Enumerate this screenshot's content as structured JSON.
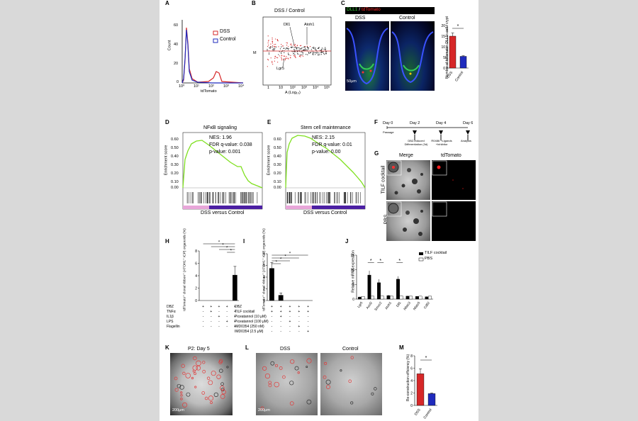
{
  "panel_labels": {
    "A": "A",
    "B": "B",
    "C": "C",
    "D": "D",
    "E": "E",
    "F": "F",
    "G": "G",
    "H": "H",
    "I": "I",
    "J": "J",
    "K": "K",
    "L": "L",
    "M": "M"
  },
  "colors": {
    "dss": "#d62728",
    "control": "#1f2bbd",
    "gsea_line": "#7fe01f",
    "gsea_pink": "#e8a6d9",
    "gsea_purple": "#4b1fa3",
    "background": "#d9d9d9"
  },
  "A": {
    "ylabel": "Count",
    "xlabel": "tdTomato",
    "legend": [
      "DSS",
      "Control"
    ],
    "yticks": [
      "0",
      "20",
      "40",
      "60"
    ],
    "xticks": [
      "10⁰",
      "10¹",
      "10²",
      "10³",
      "10⁴"
    ]
  },
  "B": {
    "title": "DSS / Control",
    "ylabel": "M",
    "xlabel": "A (Log₁₀)",
    "annotations": [
      "Dll1",
      "Atoh1",
      "Lgr5"
    ],
    "yticks": [
      "10",
      "5",
      "0",
      "-5",
      "-10"
    ],
    "xticks": [
      "1",
      "10",
      "10²",
      "10³",
      "10⁴",
      "10⁵"
    ]
  },
  "C": {
    "header_left": "DLL1",
    "header_sep": " / ",
    "header_right": "tdTomato",
    "col_labels": [
      "DSS",
      "Control"
    ],
    "scale_bar": "50μm",
    "ylabel": "Number of tdTomato⁺ DLL1⁺ cell / crypt",
    "yticks": [
      "0",
      "5",
      "10",
      "15",
      "20"
    ],
    "categories": [
      "DSS",
      "Control"
    ],
    "star": "*"
  },
  "D": {
    "title": "NFκB signaling",
    "stats": [
      "NES: 1.96",
      "FDR q-value: 0.038",
      "p-value: 0.001"
    ],
    "ylabel": "Enrichment score",
    "xlabel": "DSS versus Control",
    "yticks": [
      "0.60",
      "0.50",
      "0.40",
      "0.30",
      "0.20",
      "0.10",
      "0.00"
    ]
  },
  "E": {
    "title": "Stem cell maintenance",
    "stats": [
      "NES: 2.15",
      "FDR q-value: 0.01",
      "p-value: 0.00"
    ],
    "ylabel": "Enrichment score",
    "xlabel": "DSS versus Control",
    "yticks": [
      "0.60",
      "0.50",
      "0.40",
      "0.30",
      "0.20",
      "0.10",
      "0.00"
    ]
  },
  "F": {
    "days": [
      "Day 0",
      "Day 2",
      "Day 4",
      "Day 6"
    ],
    "steps": [
      "Passage",
      "DBZ-induced Differentiation (3d)",
      "R0486 +Ligands +Inhibitor",
      "Analysis"
    ]
  },
  "G": {
    "col_labels": [
      "Merge",
      "tdTomato"
    ],
    "row_labels": [
      "TILF cocktail",
      "PBS"
    ]
  },
  "H": {
    "ylabel": "tdTomato⁺ clonal ribbon⁺ (ATOH1⁺ ICP) organoids (%)",
    "yticks": [
      "0",
      "2",
      "4",
      "6",
      "8"
    ],
    "rows": [
      {
        "label": "DBZ",
        "marks": [
          "+",
          "+",
          "+",
          "+",
          "+"
        ]
      },
      {
        "label": "TNFα",
        "marks": [
          "-",
          "+",
          "-",
          "-",
          "+"
        ]
      },
      {
        "label": "IL1β",
        "marks": [
          "-",
          "-",
          "+",
          "-",
          "+"
        ]
      },
      {
        "label": "LPS",
        "marks": [
          "-",
          "-",
          "-",
          "+",
          "+"
        ]
      },
      {
        "label": "Flagellin",
        "marks": [
          "-",
          "-",
          "-",
          "-",
          "+"
        ]
      }
    ],
    "star": "*"
  },
  "I": {
    "ylabel": "tdTomato⁺ clonal ribbon⁺ (ATOH1⁺ ICP) organoids (%)",
    "yticks": [
      "0",
      "2",
      "4",
      "6",
      "8"
    ],
    "rows": [
      {
        "label": "DBZ",
        "marks": [
          "+",
          "+",
          "+",
          "+",
          "+"
        ]
      },
      {
        "label": "TILF cocktail",
        "marks": [
          "+",
          "+",
          "+",
          "+",
          "+"
        ]
      },
      {
        "label": "Piceatannol (10 μM)",
        "marks": [
          "-",
          "+",
          "-",
          "-",
          "-"
        ]
      },
      {
        "label": "Piceatannol (100 μM)",
        "marks": [
          "-",
          "-",
          "+",
          "-",
          "-"
        ]
      },
      {
        "label": "IMD0354 (250 nM)",
        "marks": [
          "-",
          "-",
          "-",
          "+",
          "-"
        ]
      },
      {
        "label": "IMD0354 (2.5 μM)",
        "marks": [
          "-",
          "-",
          "-",
          "-",
          "+"
        ]
      }
    ],
    "star": "*"
  },
  "J": {
    "ylabel": "Relative mRNA expression",
    "yticks": [
      "0",
      "5",
      "10",
      "15"
    ],
    "legend": [
      "TILF cocktail",
      "PBS"
    ],
    "genes": [
      "Lgr5",
      "Ascl2",
      "Smoc2",
      "Atoh1",
      "Dll1",
      "Nfatc3",
      "Nfatc5",
      "Cd82"
    ],
    "star": "*"
  },
  "K": {
    "title": "P2: Day 5",
    "scale_bar": "200μm"
  },
  "L": {
    "col_labels": [
      "DSS",
      "Control"
    ],
    "scale_bar": "200μm"
  },
  "M": {
    "ylabel": "Re-construction efficiency (%)",
    "yticks": [
      "0",
      "2",
      "4",
      "6",
      "8"
    ],
    "categories": [
      "DSS",
      "Control"
    ],
    "star": "*"
  },
  "chart_data": [
    {
      "panel": "C",
      "type": "bar",
      "categories": [
        "DSS",
        "Control"
      ],
      "values": [
        15,
        5.5
      ],
      "errors": [
        1.5,
        0.3
      ],
      "ylim": [
        0,
        20
      ]
    },
    {
      "panel": "H",
      "type": "bar",
      "categories": [
        "1",
        "2",
        "3",
        "4",
        "5"
      ],
      "values": [
        0,
        0,
        0,
        0,
        4.1
      ],
      "errors": [
        0,
        0,
        0,
        0,
        1.4
      ],
      "ylim": [
        0,
        8
      ]
    },
    {
      "panel": "I",
      "type": "bar",
      "categories": [
        "1",
        "2",
        "3",
        "4",
        "5"
      ],
      "values": [
        5.5,
        0.9,
        0,
        0,
        0
      ],
      "errors": [
        1.0,
        0.4,
        0,
        0,
        0
      ],
      "ylim": [
        0,
        8
      ]
    },
    {
      "panel": "J",
      "type": "bar",
      "categories": [
        "Lgr5",
        "Ascl2",
        "Smoc2",
        "Atoh1",
        "Dll1",
        "Nfatc3",
        "Nfatc5",
        "Cd82"
      ],
      "series": [
        {
          "name": "TILF cocktail",
          "values": [
            0.7,
            8.2,
            5.6,
            1.2,
            6.8,
            1.0,
            0.9,
            0.8
          ],
          "errors": [
            0.1,
            1.5,
            1.2,
            0.2,
            1.0,
            0.1,
            0.1,
            0.1
          ]
        },
        {
          "name": "PBS",
          "values": [
            0.9,
            1.0,
            1.1,
            1.0,
            1.1,
            1.0,
            1.0,
            1.0
          ],
          "errors": [
            0.1,
            0.1,
            0.1,
            0.1,
            0.1,
            0.1,
            0.1,
            0.1
          ]
        }
      ],
      "ylim": [
        0,
        15
      ]
    },
    {
      "panel": "M",
      "type": "bar",
      "categories": [
        "DSS",
        "Control"
      ],
      "values": [
        5.1,
        1.9
      ],
      "errors": [
        0.8,
        0.1
      ],
      "ylim": [
        0,
        8
      ]
    }
  ]
}
